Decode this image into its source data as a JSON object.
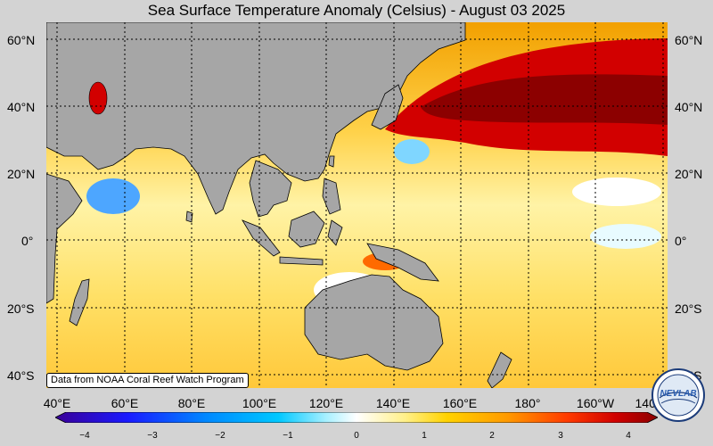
{
  "title": "Sea Surface Temperature Anomaly (Celsius) - August 03 2025",
  "lat_labels": [
    "60°N",
    "40°N",
    "20°N",
    "0°",
    "20°S",
    "40°S"
  ],
  "lon_labels": [
    "40°E",
    "60°E",
    "80°E",
    "100°E",
    "120°E",
    "140°E",
    "160°E",
    "180°",
    "160°W",
    "140°"
  ],
  "credit": "Data from NOAA Coral Reef Watch Program",
  "colorbar": {
    "ticks": [
      "−4",
      "−3",
      "−2",
      "−1",
      "0",
      "1",
      "2",
      "3",
      "4"
    ],
    "range": [
      -4,
      4
    ],
    "colors": [
      "#3a0097",
      "#1a1aff",
      "#0088ff",
      "#00c8ff",
      "#a8f0ff",
      "#ffffff",
      "#fff08a",
      "#ffd200",
      "#ff9a00",
      "#ff3a00",
      "#d00000",
      "#8c0000"
    ]
  },
  "logo": {
    "text": "NEVLAB"
  },
  "colors": {
    "land": "#a6a6a6",
    "background": "#d3d3d3"
  }
}
